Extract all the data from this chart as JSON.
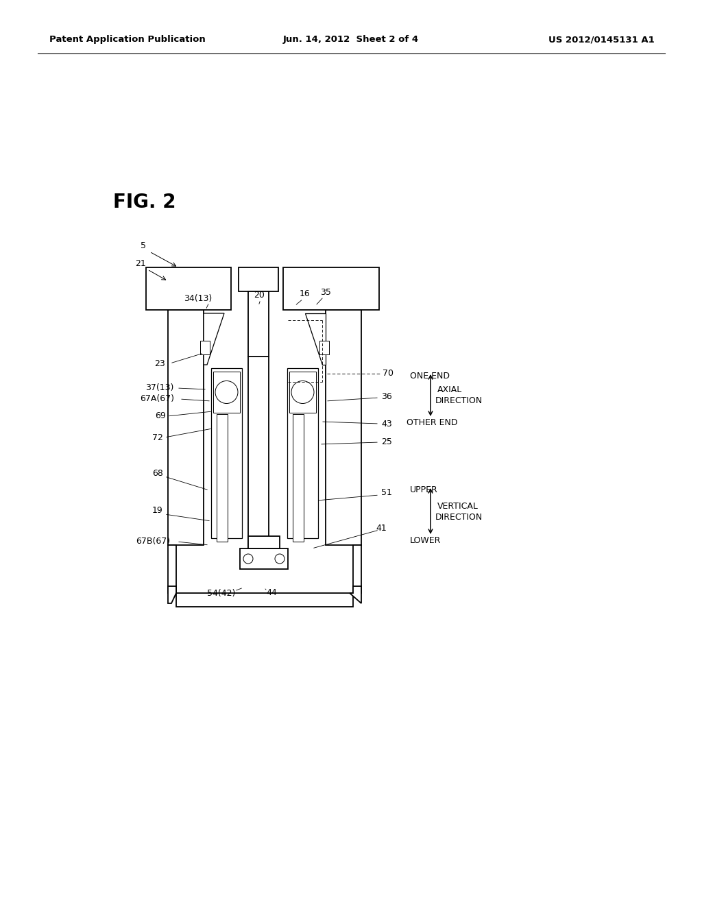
{
  "bg_color": "#ffffff",
  "header_left": "Patent Application Publication",
  "header_center": "Jun. 14, 2012  Sheet 2 of 4",
  "header_right": "US 2012/0145131 A1",
  "fig_label": "FIG. 2"
}
